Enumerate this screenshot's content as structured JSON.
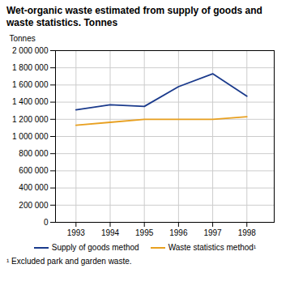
{
  "chart_data": {
    "type": "line",
    "title": "Wet-organic waste estimated from supply of goods and waste statistics. Tonnes",
    "y_label": "Tonnes",
    "annotations": [
      "¹ Excluded park and garden waste."
    ],
    "x": [
      1993,
      1994,
      1995,
      1996,
      1997,
      1998
    ],
    "series": [
      {
        "name": "Supply of goods method",
        "color": "#1a3a8c",
        "values": [
          1310000,
          1370000,
          1350000,
          1580000,
          1730000,
          1470000
        ]
      },
      {
        "name": "Waste statistics method¹",
        "color": "#e8a020",
        "values": [
          1130000,
          1165000,
          1200000,
          1200000,
          1200000,
          1230000
        ]
      }
    ],
    "xlim": [
      1992.4,
      1998.8
    ],
    "xticks": [
      1993,
      1994,
      1995,
      1996,
      1997,
      1998
    ],
    "ylim": [
      0,
      2000000
    ],
    "yticks": [
      0,
      {
        "value": 200000,
        "label": "200 000"
      },
      {
        "value": 400000,
        "label": "400 000"
      },
      {
        "value": 600000,
        "label": "600 000"
      },
      {
        "value": 800000,
        "label": "800 000"
      },
      {
        "value": 1000000,
        "label": "1 000 000"
      },
      {
        "value": 1200000,
        "label": "1 200 000"
      },
      {
        "value": 1400000,
        "label": "1 400 000"
      },
      {
        "value": 1600000,
        "label": "1 600 000"
      },
      {
        "value": 1800000,
        "label": "1 800 000"
      },
      {
        "value": 2000000,
        "label": "2 000 000"
      }
    ],
    "grid": true,
    "legend": "bottom"
  }
}
